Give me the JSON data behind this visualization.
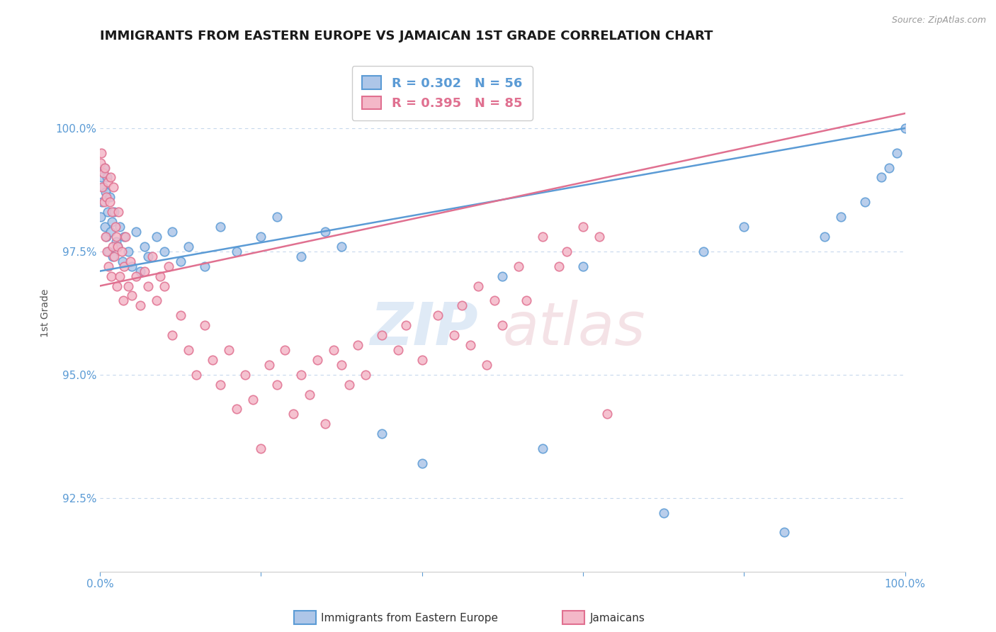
{
  "title": "IMMIGRANTS FROM EASTERN EUROPE VS JAMAICAN 1ST GRADE CORRELATION CHART",
  "source": "Source: ZipAtlas.com",
  "ylabel": "1st Grade",
  "xlim": [
    0.0,
    100.0
  ],
  "ylim": [
    91.0,
    101.5
  ],
  "yticks": [
    92.5,
    95.0,
    97.5,
    100.0
  ],
  "ytick_labels": [
    "92.5%",
    "95.0%",
    "97.5%",
    "100.0%"
  ],
  "title_color": "#1a1a1a",
  "axis_color": "#5b9bd5",
  "grid_color": "#b8cfe8",
  "series": [
    {
      "name": "Immigrants from Eastern Europe",
      "R": 0.302,
      "N": 56,
      "color": "#5b9bd5",
      "fill_color": "#aec6e8",
      "marker_size": 9,
      "line_y0": 97.1,
      "line_y1": 100.0,
      "x": [
        0.1,
        0.2,
        0.3,
        0.4,
        0.5,
        0.6,
        0.7,
        0.8,
        0.9,
        1.0,
        1.1,
        1.2,
        1.3,
        1.5,
        1.6,
        1.8,
        2.0,
        2.2,
        2.5,
        2.8,
        3.0,
        3.5,
        4.0,
        4.5,
        5.0,
        5.5,
        6.0,
        7.0,
        8.0,
        9.0,
        10.0,
        11.0,
        13.0,
        15.0,
        17.0,
        20.0,
        22.0,
        25.0,
        28.0,
        30.0,
        35.0,
        40.0,
        50.0,
        55.0,
        60.0,
        70.0,
        75.0,
        80.0,
        85.0,
        90.0,
        92.0,
        95.0,
        97.0,
        98.0,
        99.0,
        100.0
      ],
      "y": [
        98.2,
        99.0,
        98.5,
        98.8,
        99.2,
        98.0,
        98.7,
        97.8,
        99.0,
        98.3,
        97.5,
        98.6,
        97.9,
        98.1,
        97.4,
        98.3,
        97.7,
        97.6,
        98.0,
        97.3,
        97.8,
        97.5,
        97.2,
        97.9,
        97.1,
        97.6,
        97.4,
        97.8,
        97.5,
        97.9,
        97.3,
        97.6,
        97.2,
        98.0,
        97.5,
        97.8,
        98.2,
        97.4,
        97.9,
        97.6,
        93.8,
        93.2,
        97.0,
        93.5,
        97.2,
        92.2,
        97.5,
        98.0,
        91.8,
        97.8,
        98.2,
        98.5,
        99.0,
        99.2,
        99.5,
        100.0
      ]
    },
    {
      "name": "Jamaicans",
      "R": 0.395,
      "N": 85,
      "color": "#e07090",
      "fill_color": "#f4b8c8",
      "marker_size": 9,
      "line_y0": 96.8,
      "line_y1": 100.3,
      "x": [
        0.1,
        0.2,
        0.3,
        0.4,
        0.5,
        0.6,
        0.7,
        0.8,
        0.9,
        1.0,
        1.1,
        1.2,
        1.3,
        1.4,
        1.5,
        1.6,
        1.7,
        1.8,
        1.9,
        2.0,
        2.1,
        2.2,
        2.3,
        2.5,
        2.7,
        2.9,
        3.0,
        3.2,
        3.5,
        3.8,
        4.0,
        4.5,
        5.0,
        5.5,
        6.0,
        6.5,
        7.0,
        7.5,
        8.0,
        8.5,
        9.0,
        10.0,
        11.0,
        12.0,
        13.0,
        14.0,
        15.0,
        16.0,
        17.0,
        18.0,
        19.0,
        20.0,
        21.0,
        22.0,
        23.0,
        24.0,
        25.0,
        26.0,
        27.0,
        28.0,
        29.0,
        30.0,
        31.0,
        32.0,
        33.0,
        35.0,
        37.0,
        38.0,
        40.0,
        42.0,
        44.0,
        45.0,
        46.0,
        47.0,
        48.0,
        49.0,
        50.0,
        52.0,
        53.0,
        55.0,
        57.0,
        58.0,
        60.0,
        62.0,
        63.0
      ],
      "y": [
        99.3,
        99.5,
        98.8,
        99.1,
        98.5,
        99.2,
        97.8,
        98.6,
        97.5,
        98.9,
        97.2,
        98.5,
        99.0,
        97.0,
        98.3,
        97.6,
        98.8,
        97.4,
        98.0,
        97.8,
        96.8,
        97.6,
        98.3,
        97.0,
        97.5,
        96.5,
        97.2,
        97.8,
        96.8,
        97.3,
        96.6,
        97.0,
        96.4,
        97.1,
        96.8,
        97.4,
        96.5,
        97.0,
        96.8,
        97.2,
        95.8,
        96.2,
        95.5,
        95.0,
        96.0,
        95.3,
        94.8,
        95.5,
        94.3,
        95.0,
        94.5,
        93.5,
        95.2,
        94.8,
        95.5,
        94.2,
        95.0,
        94.6,
        95.3,
        94.0,
        95.5,
        95.2,
        94.8,
        95.6,
        95.0,
        95.8,
        95.5,
        96.0,
        95.3,
        96.2,
        95.8,
        96.4,
        95.6,
        96.8,
        95.2,
        96.5,
        96.0,
        97.2,
        96.5,
        97.8,
        97.2,
        97.5,
        98.0,
        97.8,
        94.2
      ]
    }
  ]
}
